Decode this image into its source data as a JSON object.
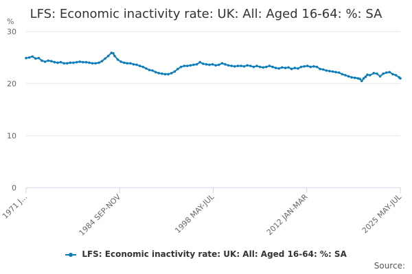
{
  "title": "LFS: Economic inactivity rate: UK: All: Aged 16-64: %: SA",
  "source_label": "Source:",
  "colors": {
    "series": "#0b7dbd",
    "grid": "#e6e6e6",
    "axis": "#ccd6eb"
  },
  "chart_data": {
    "type": "line",
    "title": "LFS: Economic inactivity rate: UK: All: Aged 16-64: %: SA",
    "ylabel": "%",
    "xlabel": "",
    "ylim": [
      0,
      30
    ],
    "yticks": [
      0,
      10,
      20,
      30
    ],
    "xlim": [
      1971.0,
      2025.4
    ],
    "xtick_labels": [
      {
        "x": 1971.0,
        "label": "1971 J..."
      },
      {
        "x": 1984.7,
        "label": "1984 SEP-NOV"
      },
      {
        "x": 1998.35,
        "label": "1998 MAY-JUL"
      },
      {
        "x": 2012.0,
        "label": "2012 JAN-MAR"
      },
      {
        "x": 2025.4,
        "label": "2025 MAY-JUL"
      }
    ],
    "grid": true,
    "legend_position": "bottom",
    "series": [
      {
        "name": "LFS: Economic inactivity rate: UK: All: Aged 16-64: %: SA",
        "points": [
          [
            1971.0,
            24.9
          ],
          [
            1971.5,
            25.0
          ],
          [
            1972.0,
            25.2
          ],
          [
            1972.5,
            24.8
          ],
          [
            1973.0,
            24.9
          ],
          [
            1973.5,
            24.4
          ],
          [
            1974.0,
            24.2
          ],
          [
            1974.5,
            24.4
          ],
          [
            1975.0,
            24.3
          ],
          [
            1975.5,
            24.1
          ],
          [
            1976.0,
            24.0
          ],
          [
            1976.5,
            24.1
          ],
          [
            1977.0,
            23.9
          ],
          [
            1977.5,
            23.9
          ],
          [
            1978.0,
            24.0
          ],
          [
            1978.5,
            24.0
          ],
          [
            1979.0,
            24.1
          ],
          [
            1979.5,
            24.2
          ],
          [
            1980.0,
            24.1
          ],
          [
            1980.5,
            24.1
          ],
          [
            1981.0,
            24.0
          ],
          [
            1981.5,
            23.9
          ],
          [
            1982.0,
            23.9
          ],
          [
            1982.5,
            24.0
          ],
          [
            1983.0,
            24.3
          ],
          [
            1983.5,
            24.8
          ],
          [
            1984.0,
            25.3
          ],
          [
            1984.5,
            25.9
          ],
          [
            1984.8,
            25.8
          ],
          [
            1985.0,
            25.3
          ],
          [
            1985.5,
            24.6
          ],
          [
            1986.0,
            24.2
          ],
          [
            1986.5,
            24.0
          ],
          [
            1987.0,
            23.9
          ],
          [
            1987.5,
            23.9
          ],
          [
            1988.0,
            23.7
          ],
          [
            1988.5,
            23.6
          ],
          [
            1989.0,
            23.4
          ],
          [
            1989.5,
            23.2
          ],
          [
            1990.0,
            22.9
          ],
          [
            1990.5,
            22.6
          ],
          [
            1991.0,
            22.5
          ],
          [
            1991.5,
            22.2
          ],
          [
            1992.0,
            22.0
          ],
          [
            1992.5,
            21.9
          ],
          [
            1993.0,
            21.8
          ],
          [
            1993.5,
            21.8
          ],
          [
            1994.0,
            22.0
          ],
          [
            1994.5,
            22.3
          ],
          [
            1995.0,
            22.8
          ],
          [
            1995.5,
            23.2
          ],
          [
            1996.0,
            23.4
          ],
          [
            1996.5,
            23.4
          ],
          [
            1997.0,
            23.5
          ],
          [
            1997.5,
            23.6
          ],
          [
            1998.0,
            23.7
          ],
          [
            1998.5,
            24.1
          ],
          [
            1999.0,
            23.8
          ],
          [
            1999.5,
            23.7
          ],
          [
            2000.0,
            23.6
          ],
          [
            2000.5,
            23.7
          ],
          [
            2001.0,
            23.5
          ],
          [
            2001.5,
            23.6
          ],
          [
            2002.0,
            23.9
          ],
          [
            2002.5,
            23.7
          ],
          [
            2003.0,
            23.5
          ],
          [
            2003.5,
            23.4
          ],
          [
            2004.0,
            23.3
          ],
          [
            2004.5,
            23.4
          ],
          [
            2005.0,
            23.4
          ],
          [
            2005.5,
            23.3
          ],
          [
            2006.0,
            23.5
          ],
          [
            2006.5,
            23.4
          ],
          [
            2007.0,
            23.2
          ],
          [
            2007.5,
            23.4
          ],
          [
            2008.0,
            23.2
          ],
          [
            2008.5,
            23.1
          ],
          [
            2009.0,
            23.2
          ],
          [
            2009.5,
            23.4
          ],
          [
            2010.0,
            23.2
          ],
          [
            2010.5,
            23.0
          ],
          [
            2011.0,
            22.9
          ],
          [
            2011.5,
            23.1
          ],
          [
            2012.0,
            23.0
          ],
          [
            2012.5,
            23.1
          ],
          [
            2013.0,
            22.8
          ],
          [
            2013.5,
            23.0
          ],
          [
            2014.0,
            22.9
          ],
          [
            2014.5,
            23.2
          ],
          [
            2015.0,
            23.3
          ],
          [
            2015.5,
            23.4
          ],
          [
            2016.0,
            23.2
          ],
          [
            2016.5,
            23.3
          ],
          [
            2017.0,
            23.2
          ],
          [
            2017.5,
            22.8
          ],
          [
            2018.0,
            22.7
          ],
          [
            2018.5,
            22.5
          ],
          [
            2019.0,
            22.4
          ],
          [
            2019.5,
            22.3
          ],
          [
            2020.0,
            22.2
          ],
          [
            2020.5,
            22.1
          ],
          [
            2021.0,
            21.8
          ],
          [
            2021.5,
            21.6
          ],
          [
            2022.0,
            21.4
          ],
          [
            2022.5,
            21.2
          ],
          [
            2023.0,
            21.1
          ],
          [
            2023.5,
            21.0
          ],
          [
            2023.8,
            20.9
          ],
          [
            2024.1,
            20.5
          ],
          [
            2024.4,
            21.0
          ],
          [
            2024.7,
            21.3
          ],
          [
            2025.0,
            21.7
          ],
          [
            2025.4,
            21.6
          ],
          [
            2026.0,
            22.0
          ],
          [
            2026.5,
            21.9
          ],
          [
            2027.0,
            21.4
          ],
          [
            2027.5,
            21.9
          ],
          [
            2028.0,
            22.1
          ],
          [
            2028.5,
            22.2
          ],
          [
            2029.0,
            21.8
          ],
          [
            2029.5,
            21.6
          ],
          [
            2030.0,
            21.2
          ],
          [
            2030.2,
            21.0
          ]
        ]
      }
    ]
  }
}
